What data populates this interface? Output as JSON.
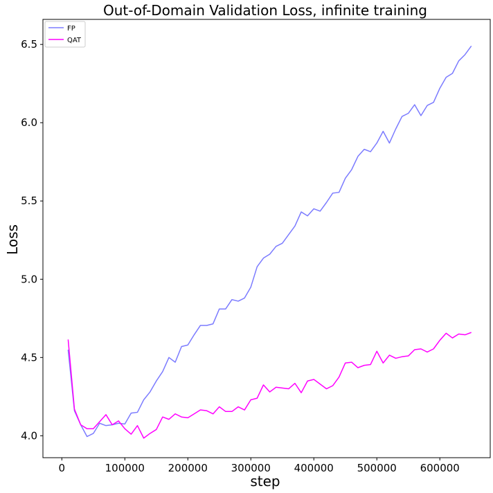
{
  "chart_data": {
    "type": "line",
    "title": "Out-of-Domain Validation Loss, infinite training",
    "xlabel": "step",
    "ylabel": "Loss",
    "xlim": [
      -30000,
      680000
    ],
    "ylim": [
      3.86,
      6.66
    ],
    "xticks": [
      0,
      100000,
      200000,
      300000,
      400000,
      500000,
      600000
    ],
    "xtick_labels": [
      "0",
      "100000",
      "200000",
      "300000",
      "400000",
      "500000",
      "600000"
    ],
    "yticks": [
      4.0,
      4.5,
      5.0,
      5.5,
      6.0,
      6.5
    ],
    "ytick_labels": [
      "4.0",
      "4.5",
      "5.0",
      "5.5",
      "6.0",
      "6.5"
    ],
    "grid": false,
    "legend_position": "top-left",
    "series": [
      {
        "name": "FP",
        "color": "#7b7bff",
        "x": [
          10000,
          20000,
          30000,
          40000,
          50000,
          60000,
          70000,
          80000,
          90000,
          100000,
          110000,
          120000,
          130000,
          140000,
          150000,
          160000,
          170000,
          180000,
          190000,
          200000,
          210000,
          220000,
          230000,
          240000,
          250000,
          260000,
          270000,
          280000,
          290000,
          300000,
          310000,
          320000,
          330000,
          340000,
          350000,
          360000,
          370000,
          380000,
          390000,
          400000,
          410000,
          420000,
          430000,
          440000,
          450000,
          460000,
          470000,
          480000,
          490000,
          500000,
          510000,
          520000,
          530000,
          540000,
          550000,
          560000,
          570000,
          580000,
          590000,
          600000,
          610000,
          620000,
          630000,
          640000,
          650000
        ],
        "y": [
          4.55,
          4.16,
          4.07,
          3.995,
          4.015,
          4.08,
          4.065,
          4.07,
          4.08,
          4.075,
          4.145,
          4.15,
          4.23,
          4.28,
          4.35,
          4.41,
          4.5,
          4.47,
          4.57,
          4.58,
          4.645,
          4.705,
          4.705,
          4.715,
          4.81,
          4.81,
          4.87,
          4.86,
          4.88,
          4.95,
          5.08,
          5.135,
          5.16,
          5.21,
          5.23,
          5.285,
          5.34,
          5.43,
          5.405,
          5.45,
          5.435,
          5.49,
          5.55,
          5.555,
          5.645,
          5.7,
          5.785,
          5.83,
          5.815,
          5.87,
          5.945,
          5.87,
          5.96,
          6.04,
          6.06,
          6.115,
          6.045,
          6.11,
          6.13,
          6.22,
          6.29,
          6.315,
          6.395,
          6.435,
          6.49
        ]
      },
      {
        "name": "QAT",
        "color": "#ff00ff",
        "x": [
          10000,
          20000,
          30000,
          40000,
          50000,
          60000,
          70000,
          80000,
          90000,
          100000,
          110000,
          120000,
          130000,
          140000,
          150000,
          160000,
          170000,
          180000,
          190000,
          200000,
          210000,
          220000,
          230000,
          240000,
          250000,
          260000,
          270000,
          280000,
          290000,
          300000,
          310000,
          320000,
          330000,
          340000,
          350000,
          360000,
          370000,
          380000,
          390000,
          400000,
          410000,
          420000,
          430000,
          440000,
          450000,
          460000,
          470000,
          480000,
          490000,
          500000,
          510000,
          520000,
          530000,
          540000,
          550000,
          560000,
          570000,
          580000,
          590000,
          600000,
          610000,
          620000,
          630000,
          640000,
          650000
        ],
        "y": [
          4.615,
          4.17,
          4.07,
          4.045,
          4.045,
          4.09,
          4.135,
          4.07,
          4.095,
          4.045,
          4.01,
          4.065,
          3.985,
          4.015,
          4.04,
          4.12,
          4.105,
          4.14,
          4.12,
          4.115,
          4.14,
          4.165,
          4.16,
          4.14,
          4.185,
          4.155,
          4.155,
          4.185,
          4.165,
          4.23,
          4.24,
          4.325,
          4.28,
          4.31,
          4.305,
          4.3,
          4.335,
          4.275,
          4.35,
          4.36,
          4.33,
          4.3,
          4.32,
          4.375,
          4.465,
          4.47,
          4.435,
          4.45,
          4.455,
          4.54,
          4.465,
          4.515,
          4.495,
          4.505,
          4.51,
          4.55,
          4.555,
          4.535,
          4.555,
          4.61,
          4.655,
          4.625,
          4.65,
          4.645,
          4.66
        ]
      }
    ]
  }
}
